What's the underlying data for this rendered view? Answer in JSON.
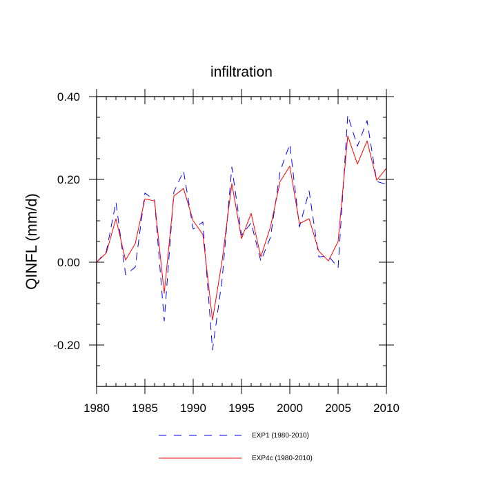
{
  "chart_data": {
    "type": "line",
    "title": "infiltration",
    "xlabel": "",
    "ylabel": "QINFL  (mm/d)",
    "xlim": [
      1980,
      2010
    ],
    "ylim": [
      -0.3,
      0.4
    ],
    "x_ticks": [
      1980,
      1985,
      1990,
      1995,
      2000,
      2005,
      2010
    ],
    "x_tick_labels": [
      "1980",
      "1985",
      "1990",
      "1995",
      "2000",
      "2005",
      "2010"
    ],
    "y_ticks": [
      -0.2,
      0.0,
      0.2,
      0.4
    ],
    "y_tick_labels": [
      "-0.20",
      "0.00",
      "0.20",
      "0.40"
    ],
    "grid": false,
    "legend_position": "bottom-center",
    "x": [
      1980,
      1981,
      1982,
      1983,
      1984,
      1985,
      1986,
      1987,
      1988,
      1989,
      1990,
      1991,
      1992,
      1993,
      1994,
      1995,
      1996,
      1997,
      1998,
      1999,
      2000,
      2001,
      2002,
      2003,
      2004,
      2005,
      2006,
      2007,
      2008,
      2009,
      2010
    ],
    "series": [
      {
        "name": "EXP1 (1980-2010)",
        "color": "#0000ff",
        "style": "dashed",
        "values": [
          0.0,
          0.025,
          0.145,
          -0.03,
          -0.012,
          0.167,
          0.15,
          -0.142,
          0.17,
          0.22,
          0.08,
          0.097,
          -0.212,
          -0.04,
          0.23,
          0.065,
          0.095,
          0.003,
          0.06,
          0.22,
          0.285,
          0.085,
          0.172,
          0.013,
          0.015,
          -0.013,
          0.355,
          0.28,
          0.342,
          0.195,
          0.188
        ]
      },
      {
        "name": "EXP4c (1980-2010)",
        "color": "#ff0000",
        "style": "solid",
        "values": [
          0.0,
          0.022,
          0.105,
          0.005,
          0.045,
          0.153,
          0.148,
          -0.075,
          0.16,
          0.178,
          0.1,
          0.067,
          -0.14,
          0.005,
          0.19,
          0.057,
          0.118,
          0.013,
          0.085,
          0.195,
          0.232,
          0.093,
          0.105,
          0.027,
          0.003,
          0.05,
          0.305,
          0.237,
          0.293,
          0.198,
          0.227
        ]
      }
    ]
  }
}
